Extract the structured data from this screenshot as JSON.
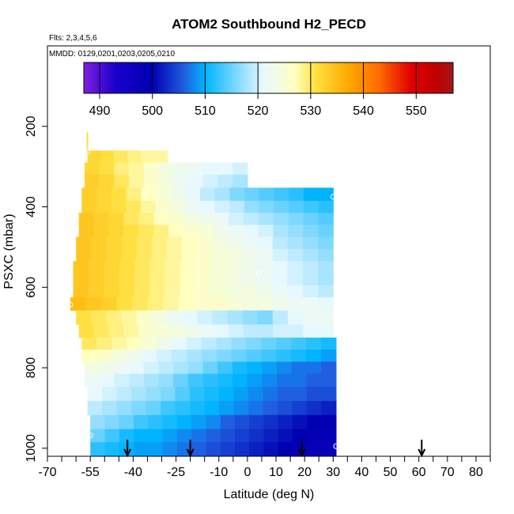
{
  "chart_data": {
    "type": "heatmap",
    "title": "ATOM2 Southbound H2_PECD",
    "subtitle_flights": "Flts: 2,3,4,5,6",
    "subtitle_dates": "MMDD: 0129,0201,0203,0205,0210",
    "xlabel": "Latitude (deg N)",
    "ylabel": "PSXC (mbar)",
    "xlim": [
      -70,
      85
    ],
    "ylim": [
      1020,
      0
    ],
    "x_ticks": [
      -70,
      -55,
      -40,
      -25,
      -10,
      0,
      10,
      20,
      30,
      40,
      50,
      60,
      70,
      80
    ],
    "x_tick_labels": [
      "-70",
      "-55",
      "-40",
      "-25",
      "-10",
      "0",
      "10",
      "20",
      "30",
      "40",
      "50",
      "60",
      "70",
      "80"
    ],
    "x_minor_ticks": [
      -65,
      -60,
      -50,
      -45,
      -35,
      -30,
      -20,
      -15,
      -5,
      5,
      15,
      25,
      35,
      45,
      55,
      65,
      75,
      85
    ],
    "y_ticks": [
      200,
      400,
      600,
      800,
      1000
    ],
    "y_tick_labels": [
      "200",
      "400",
      "600",
      "800",
      "1000"
    ],
    "colorbar": {
      "min": 487,
      "max": 557,
      "ticks": [
        490,
        500,
        510,
        520,
        530,
        540,
        550
      ],
      "tick_labels": [
        "490",
        "500",
        "510",
        "520",
        "530",
        "540",
        "550"
      ],
      "stops": [
        {
          "v": 487,
          "c": "#7f1fe0"
        },
        {
          "v": 493,
          "c": "#1a00cc"
        },
        {
          "v": 500,
          "c": "#0000b0"
        },
        {
          "v": 506,
          "c": "#1f5fe0"
        },
        {
          "v": 510,
          "c": "#00b4ff"
        },
        {
          "v": 516,
          "c": "#7fd8ff"
        },
        {
          "v": 521,
          "c": "#e8f8ff"
        },
        {
          "v": 527,
          "c": "#ffffc0"
        },
        {
          "v": 531,
          "c": "#ffe040"
        },
        {
          "v": 537,
          "c": "#ffaa00"
        },
        {
          "v": 543,
          "c": "#ff6a00"
        },
        {
          "v": 549,
          "c": "#e00000"
        },
        {
          "v": 554,
          "c": "#c00000"
        },
        {
          "v": 557,
          "c": "#a01818"
        }
      ]
    },
    "flight_arrows_lat": [
      -42,
      -20,
      19,
      61
    ],
    "bins": [
      {
        "pressure": 275,
        "lat_min": -56,
        "lat_max": -28,
        "values": [
          532,
          531,
          530,
          529,
          528,
          528
        ]
      },
      {
        "pressure": 305,
        "lat_min": -57,
        "lat_max": 0,
        "values": [
          532,
          531,
          529,
          528,
          526,
          524,
          523,
          522,
          521,
          521,
          520
        ]
      },
      {
        "pressure": 335,
        "lat_min": -57,
        "lat_max": 0,
        "values": [
          533,
          532,
          530,
          528,
          526,
          524,
          522,
          521,
          520,
          519,
          518
        ]
      },
      {
        "pressure": 370,
        "lat_min": -58,
        "lat_max": 30,
        "values": [
          533,
          532,
          531,
          529,
          527,
          525,
          523,
          521,
          519,
          518,
          516,
          515,
          514,
          513,
          512,
          510,
          510
        ]
      },
      {
        "pressure": 400,
        "lat_min": -58,
        "lat_max": 30,
        "values": [
          533,
          532,
          531,
          530,
          528,
          526,
          524,
          522,
          521,
          520,
          519,
          517,
          516,
          515,
          514,
          513,
          512
        ]
      },
      {
        "pressure": 430,
        "lat_min": -59,
        "lat_max": 30,
        "values": [
          534,
          533,
          532,
          530,
          529,
          527,
          526,
          524,
          523,
          522,
          520,
          519,
          518,
          517,
          516,
          515,
          514
        ]
      },
      {
        "pressure": 460,
        "lat_min": -59,
        "lat_max": 30,
        "values": [
          534,
          533,
          532,
          531,
          530,
          529,
          527,
          526,
          525,
          523,
          522,
          521,
          520,
          518,
          517,
          516,
          515
        ]
      },
      {
        "pressure": 490,
        "lat_min": -60,
        "lat_max": 30,
        "values": [
          534,
          533,
          532,
          531,
          530,
          529,
          528,
          527,
          526,
          524,
          523,
          522,
          521,
          519,
          518,
          517,
          516
        ]
      },
      {
        "pressure": 520,
        "lat_min": -60,
        "lat_max": 30,
        "values": [
          534,
          533,
          532,
          531,
          530,
          529,
          528,
          527,
          526,
          525,
          524,
          523,
          522,
          520,
          519,
          518,
          517
        ]
      },
      {
        "pressure": 550,
        "lat_min": -61,
        "lat_max": 30,
        "values": [
          534,
          533,
          532,
          531,
          530,
          529,
          528,
          527,
          526,
          525,
          524,
          523,
          522,
          521,
          520,
          519,
          518
        ]
      },
      {
        "pressure": 580,
        "lat_min": -61,
        "lat_max": 30,
        "values": [
          534,
          533,
          532,
          531,
          530,
          529,
          528,
          527,
          526,
          525,
          524,
          523,
          522,
          521,
          520,
          519,
          518
        ]
      },
      {
        "pressure": 610,
        "lat_min": -61,
        "lat_max": 30,
        "values": [
          534,
          533,
          532,
          531,
          530,
          529,
          528,
          527,
          526,
          525,
          524,
          524,
          523,
          522,
          521,
          520,
          519
        ]
      },
      {
        "pressure": 640,
        "lat_min": -62,
        "lat_max": 30,
        "values": [
          535,
          534,
          533,
          531,
          530,
          529,
          528,
          527,
          526,
          526,
          525,
          524,
          524,
          523,
          522,
          522,
          521
        ]
      },
      {
        "pressure": 675,
        "lat_min": -60,
        "lat_max": 30,
        "values": [
          531,
          530,
          529,
          528,
          526,
          524,
          522,
          521,
          520,
          519,
          518,
          517,
          516,
          519,
          521,
          522,
          522
        ]
      },
      {
        "pressure": 710,
        "lat_min": -59,
        "lat_max": 30,
        "values": [
          531,
          530,
          529,
          528,
          526,
          525,
          524,
          523,
          522,
          521,
          520,
          519,
          519,
          520,
          520,
          521,
          521
        ]
      },
      {
        "pressure": 740,
        "lat_min": -58,
        "lat_max": 31,
        "values": [
          530,
          529,
          528,
          527,
          525,
          523,
          521,
          520,
          519,
          518,
          517,
          516,
          515,
          514,
          513,
          512,
          511
        ]
      },
      {
        "pressure": 770,
        "lat_min": -58,
        "lat_max": 31,
        "values": [
          527,
          526,
          524,
          523,
          521,
          520,
          519,
          518,
          517,
          516,
          515,
          514,
          513,
          512,
          511,
          510,
          509
        ]
      },
      {
        "pressure": 800,
        "lat_min": -57,
        "lat_max": 31,
        "values": [
          524,
          523,
          522,
          521,
          520,
          519,
          518,
          517,
          515,
          513,
          511,
          510,
          509,
          508,
          507,
          507,
          506
        ]
      },
      {
        "pressure": 830,
        "lat_min": -57,
        "lat_max": 31,
        "values": [
          522,
          521,
          520,
          519,
          518,
          517,
          515,
          513,
          512,
          511,
          510,
          509,
          508,
          507,
          507,
          506,
          506
        ]
      },
      {
        "pressure": 865,
        "lat_min": -56,
        "lat_max": 31,
        "values": [
          521,
          520,
          519,
          518,
          517,
          516,
          514,
          512,
          511,
          510,
          509,
          508,
          507,
          506,
          506,
          505,
          505
        ]
      },
      {
        "pressure": 900,
        "lat_min": -56,
        "lat_max": 31,
        "values": [
          519,
          518,
          517,
          516,
          515,
          513,
          512,
          511,
          510,
          509,
          508,
          507,
          506,
          505,
          504,
          503,
          502
        ]
      },
      {
        "pressure": 935,
        "lat_min": -55,
        "lat_max": 31,
        "values": [
          517,
          516,
          515,
          513,
          512,
          511,
          510,
          509,
          508,
          506,
          505,
          504,
          503,
          502,
          501,
          500,
          500
        ]
      },
      {
        "pressure": 970,
        "lat_min": -55,
        "lat_max": 31,
        "values": [
          515,
          513,
          511,
          510,
          510,
          509,
          508,
          507,
          506,
          505,
          504,
          503,
          502,
          501,
          500,
          499,
          499
        ]
      },
      {
        "pressure": 1000,
        "lat_min": -55,
        "lat_max": 31,
        "values": [
          512,
          511,
          510,
          509,
          509,
          508,
          507,
          506,
          505,
          504,
          503,
          502,
          501,
          500,
          499,
          498,
          498
        ]
      }
    ],
    "markers": [
      {
        "lat": -56,
        "pressure": 263
      },
      {
        "lat": 30,
        "pressure": 375
      },
      {
        "lat": 4,
        "pressure": 565
      },
      {
        "lat": -62,
        "pressure": 643
      },
      {
        "lat": -55,
        "pressure": 968
      },
      {
        "lat": 31,
        "pressure": 995
      }
    ]
  }
}
